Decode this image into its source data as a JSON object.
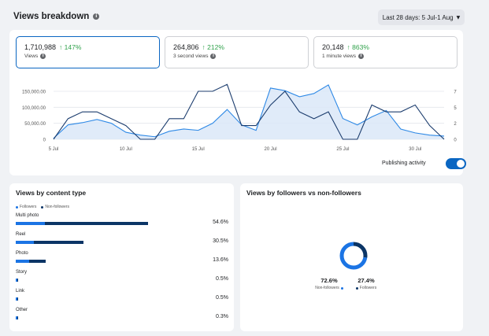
{
  "header": {
    "title": "Views breakdown",
    "date_range": "Last 28 days: 5 Jul-1 Aug"
  },
  "metrics": [
    {
      "value": "1,710,988",
      "change": "↑ 147%",
      "label": "Views"
    },
    {
      "value": "264,806",
      "change": "↑ 212%",
      "label": "3 second views"
    },
    {
      "value": "20,148",
      "change": "↑ 863%",
      "label": "1 minute views"
    }
  ],
  "toggle": {
    "label": "Publishing activity",
    "on": true
  },
  "colors": {
    "accent": "#0a66c2",
    "views_line": "#2e89e6",
    "activity_line": "#1c3d6e",
    "followers": "#1b74e4",
    "non_followers": "#0b3566",
    "positive": "#31a24c"
  },
  "chart_data": {
    "type": "line",
    "x": [
      "5 Jul",
      "6 Jul",
      "7 Jul",
      "8 Jul",
      "9 Jul",
      "10 Jul",
      "11 Jul",
      "12 Jul",
      "13 Jul",
      "14 Jul",
      "15 Jul",
      "16 Jul",
      "17 Jul",
      "18 Jul",
      "19 Jul",
      "20 Jul",
      "21 Jul",
      "22 Jul",
      "23 Jul",
      "24 Jul",
      "25 Jul",
      "26 Jul",
      "27 Jul",
      "28 Jul",
      "29 Jul",
      "30 Jul",
      "31 Jul",
      "1 Aug"
    ],
    "x_tick_labels": [
      "5 Jul",
      "10 Jul",
      "15 Jul",
      "20 Jul",
      "25 Jul",
      "30 Jul"
    ],
    "y_left_ticks": [
      "0",
      "50,000.00",
      "100,000.00",
      "150,000.00"
    ],
    "y_right_ticks": [
      "0",
      "2",
      "5",
      "7"
    ],
    "ylim_left": [
      0,
      150000
    ],
    "ylim_right": [
      0,
      7
    ],
    "series": [
      {
        "axis": "left",
        "style": "area",
        "values": [
          3000,
          45000,
          52000,
          62000,
          50000,
          22000,
          13000,
          8000,
          25000,
          32000,
          28000,
          50000,
          93000,
          45000,
          28000,
          160000,
          152000,
          133000,
          143000,
          170000,
          65000,
          45000,
          70000,
          90000,
          32000,
          20000,
          13000,
          10000
        ]
      },
      {
        "axis": "right",
        "style": "line",
        "values": [
          0,
          3,
          4,
          4,
          3,
          2,
          0,
          0,
          3,
          3,
          7,
          7,
          8,
          2,
          2,
          5,
          7,
          4,
          3,
          4,
          0,
          0,
          5,
          4,
          4,
          5,
          2,
          0
        ]
      }
    ]
  },
  "content_type": {
    "title": "Views by content type",
    "legend": {
      "followers": "Followers",
      "non_followers": "Non-followers"
    },
    "rows": [
      {
        "name": "Multi photo",
        "pct": "54.6%",
        "followers": 0.155,
        "non_followers": 0.545
      },
      {
        "name": "Reel",
        "pct": "30.5%",
        "followers": 0.095,
        "non_followers": 0.265
      },
      {
        "name": "Photo",
        "pct": "13.6%",
        "followers": 0.07,
        "non_followers": 0.09
      },
      {
        "name": "Story",
        "pct": "0.5%",
        "followers": 0.004,
        "non_followers": 0.003
      },
      {
        "name": "Link",
        "pct": "0.5%",
        "followers": 0.002,
        "non_followers": 0.005
      },
      {
        "name": "Other",
        "pct": "0.3%",
        "followers": 0.004,
        "non_followers": 0.001
      }
    ]
  },
  "followers_split": {
    "title": "Views by followers vs non-followers",
    "non_followers": {
      "pct": "72.6%",
      "label": "Non-followers",
      "value": 0.726
    },
    "followers": {
      "pct": "27.4%",
      "label": "Followers",
      "value": 0.274
    }
  }
}
